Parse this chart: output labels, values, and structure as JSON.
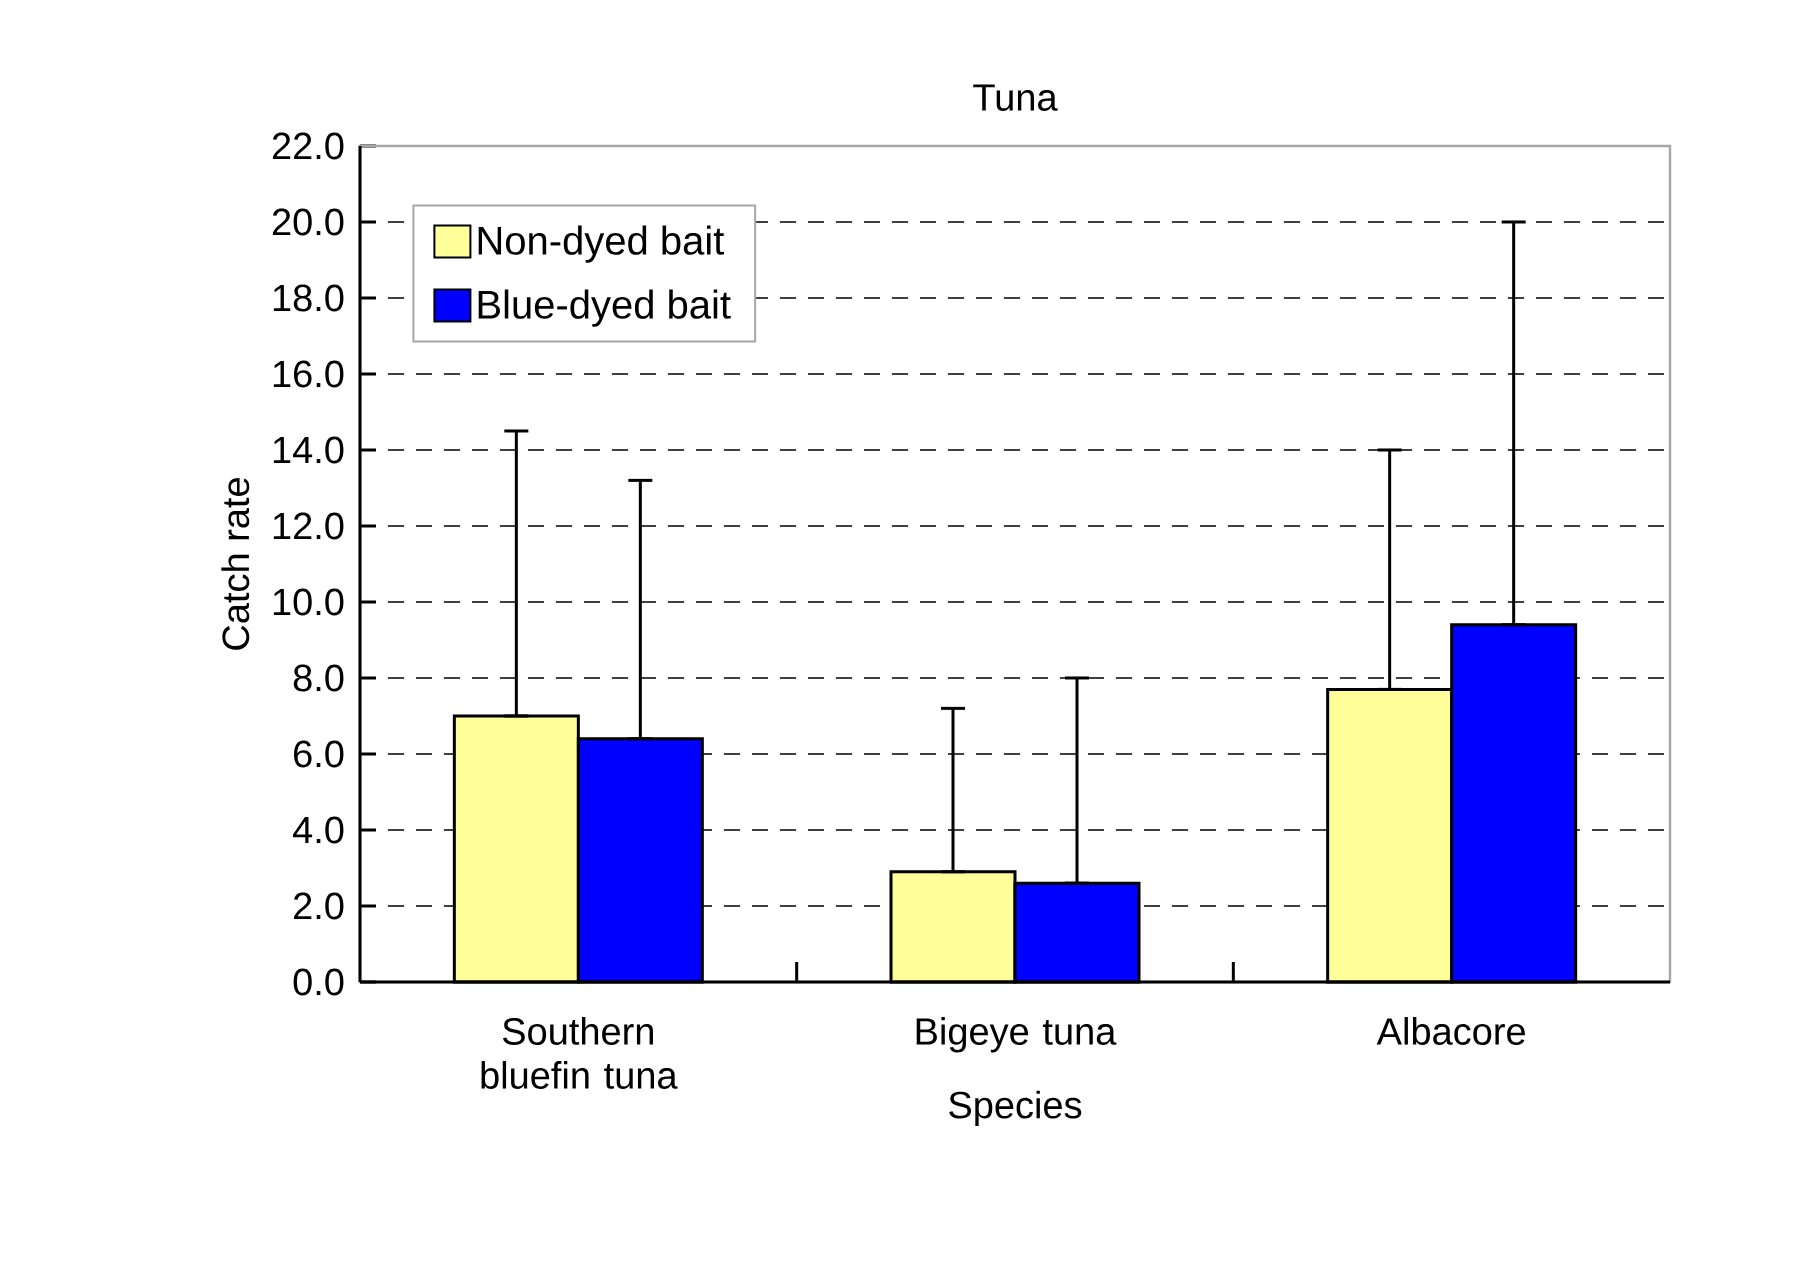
{
  "chart_data": {
    "type": "bar",
    "title": "Tuna",
    "xlabel": "Species",
    "ylabel": "Catch rate",
    "categories": [
      "Southern bluefin tuna",
      "Bigeye tuna",
      "Albacore"
    ],
    "series": [
      {
        "name": "Non-dyed bait",
        "color": "#ffff99",
        "values": [
          7.0,
          2.9,
          7.7
        ],
        "errors": [
          [
            7.0,
            14.5
          ],
          [
            2.9,
            7.2
          ],
          [
            7.7,
            14.0
          ]
        ]
      },
      {
        "name": "Blue-dyed bait",
        "color": "#0000ff",
        "values": [
          6.4,
          2.6,
          9.4
        ],
        "errors": [
          [
            6.4,
            13.2
          ],
          [
            2.6,
            8.0
          ],
          [
            9.4,
            20.0
          ]
        ]
      }
    ],
    "ylim": [
      0,
      22
    ],
    "yticks": [
      {
        "value": 0,
        "label": "0.0"
      },
      {
        "value": 2,
        "label": "2.0"
      },
      {
        "value": 4,
        "label": "4.0"
      },
      {
        "value": 6,
        "label": "6.0"
      },
      {
        "value": 8,
        "label": "8.0"
      },
      {
        "value": 10,
        "label": "10.0"
      },
      {
        "value": 12,
        "label": "12.0"
      },
      {
        "value": 14,
        "label": "14.0"
      },
      {
        "value": 16,
        "label": "16.0"
      },
      {
        "value": 18,
        "label": "18.0"
      },
      {
        "value": 20,
        "label": "20.0"
      },
      {
        "value": 22,
        "label": "22.0"
      }
    ],
    "grid": "y",
    "legend": "top left"
  }
}
